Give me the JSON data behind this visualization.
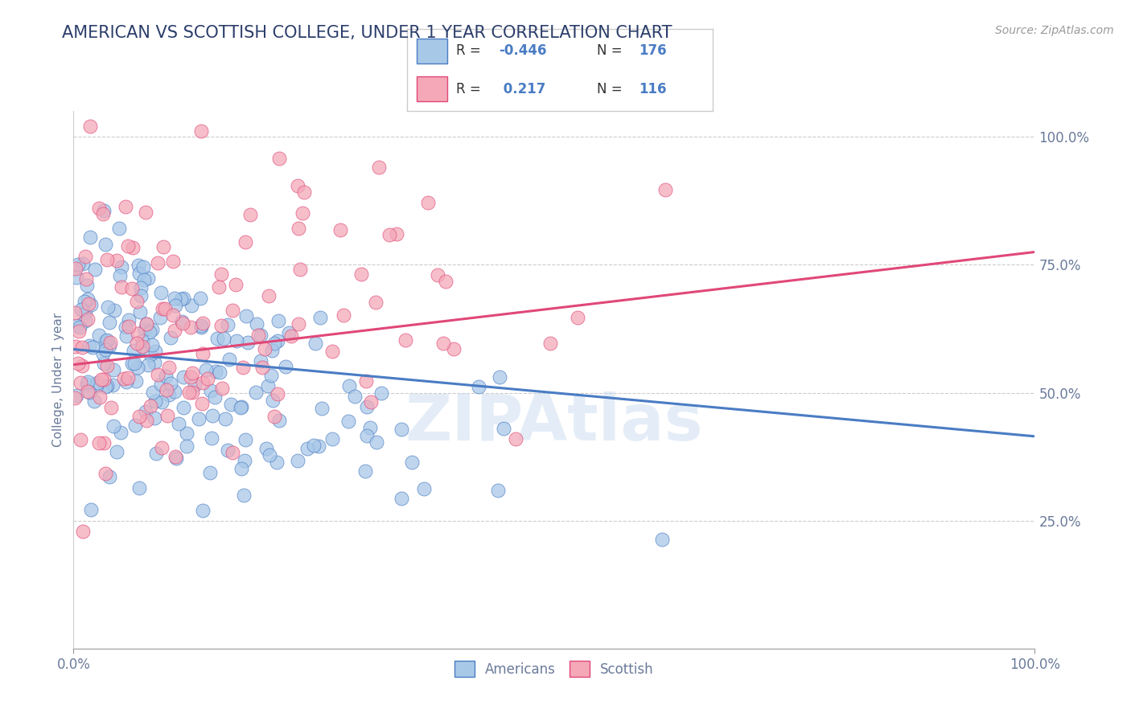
{
  "title": "AMERICAN VS SCOTTISH COLLEGE, UNDER 1 YEAR CORRELATION CHART",
  "source_text": "Source: ZipAtlas.com",
  "ylabel": "College, Under 1 year",
  "xlabel": "",
  "legend_labels": [
    "Americans",
    "Scottish"
  ],
  "r_american": -0.446,
  "n_american": 176,
  "r_scottish": 0.217,
  "n_scottish": 116,
  "american_color": "#a8c8e8",
  "scottish_color": "#f4a8b8",
  "american_line_color": "#4a7cc4",
  "scottish_line_color": "#e04878",
  "watermark": "ZIPAtlas",
  "xlim": [
    0.0,
    1.0
  ],
  "ylim": [
    0.0,
    1.05
  ],
  "x_tick_labels": [
    "0.0%",
    "100.0%"
  ],
  "y_tick_labels": [
    "25.0%",
    "50.0%",
    "75.0%",
    "100.0%"
  ],
  "y_ticks": [
    0.25,
    0.5,
    0.75,
    1.0
  ],
  "background_color": "#ffffff",
  "grid_color": "#cccccc",
  "title_color": "#2c3e6b",
  "title_fontsize": 15,
  "axis_label_color": "#6a7a9a",
  "tick_label_color": "#6a7a9a",
  "am_line_y0": 0.585,
  "am_line_y1": 0.415,
  "sc_line_y0": 0.555,
  "sc_line_y1": 0.775
}
